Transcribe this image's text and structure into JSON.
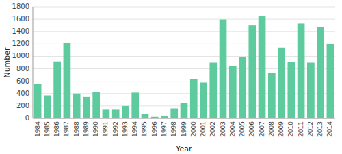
{
  "chart_data": {
    "type": "bar",
    "categories": [
      "1984",
      "1985",
      "1986",
      "1987",
      "1988",
      "1989",
      "1990",
      "1991",
      "1992",
      "1993",
      "1994",
      "1995",
      "1996",
      "1997",
      "1998",
      "1999",
      "2000",
      "2001",
      "2002",
      "2003",
      "2004",
      "2005",
      "2006",
      "2007",
      "2008",
      "2009",
      "2010",
      "2011",
      "2012",
      "2013",
      "2014"
    ],
    "values": [
      555,
      370,
      920,
      1215,
      400,
      355,
      425,
      150,
      150,
      200,
      415,
      70,
      25,
      45,
      160,
      245,
      635,
      580,
      900,
      1595,
      845,
      990,
      1500,
      1645,
      730,
      1140,
      910,
      1530,
      900,
      1470,
      1195
    ],
    "color": "#5ecb9e",
    "xlabel": "Year",
    "ylabel": "Number",
    "ylim": [
      0,
      1800
    ],
    "yticks": [
      0,
      200,
      400,
      600,
      800,
      1000,
      1200,
      1400,
      1600,
      1800
    ],
    "grid": true
  }
}
